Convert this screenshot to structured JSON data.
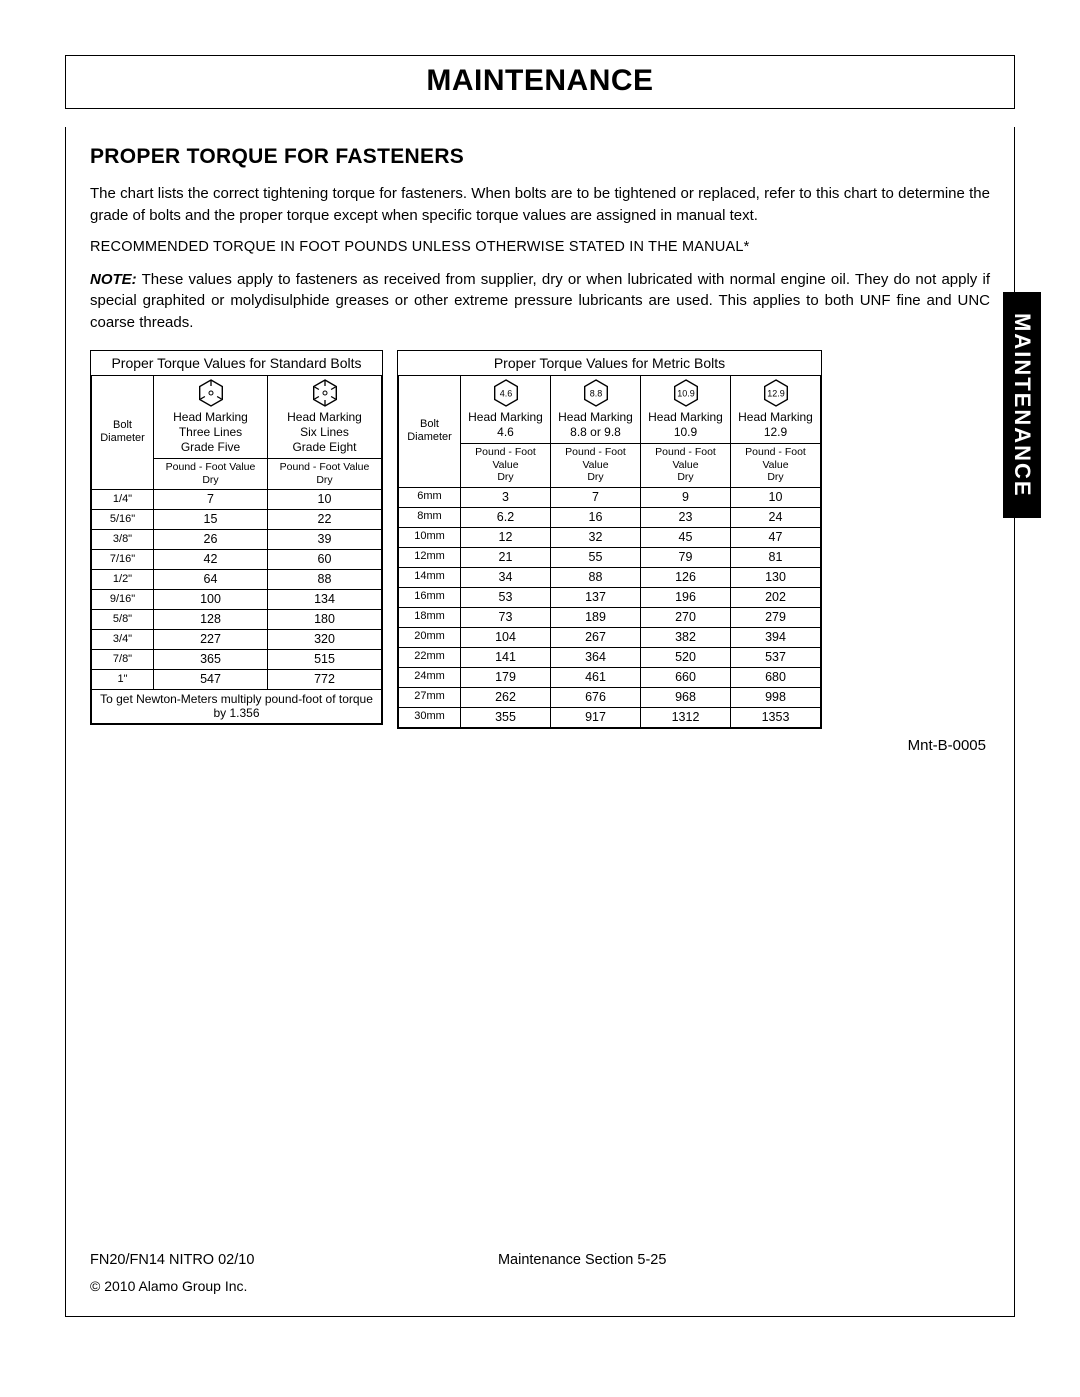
{
  "page": {
    "title": "MAINTENANCE",
    "side_tab": "MAINTENANCE",
    "section_heading": "PROPER TORQUE FOR FASTENERS",
    "intro": "The chart lists the correct tightening torque for fasteners. When bolts are to be tightened or replaced, refer to this chart to determine the grade of bolts and the proper torque except when specific torque values are assigned in manual text.",
    "caps_line": "RECOMMENDED TORQUE IN FOOT POUNDS UNLESS OTHERWISE STATED IN THE MANUAL*",
    "note_label": "NOTE:",
    "note_body": " These values apply to fasteners as received from supplier, dry or when lubricated with normal engine oil. They do not apply if special graphited or molydisulphide greases or other extreme pressure lubricants are used. This applies to both UNF fine and UNC coarse threads.",
    "figure_id": "Mnt-B-0005",
    "footer_left": "FN20/FN14 NITRO 02/10",
    "footer_center": "Maintenance Section 5-25",
    "copyright": "© 2010 Alamo Group Inc."
  },
  "standard_table": {
    "title": "Proper Torque Values for Standard Bolts",
    "dia_header": "Bolt Diameter",
    "columns": [
      {
        "marking": "Head Marking",
        "lines": "Three Lines",
        "grade": "Grade Five",
        "unit": "Pound - Foot Value",
        "state": "Dry",
        "hex_label": "",
        "tick_count": 3
      },
      {
        "marking": "Head Marking",
        "lines": "Six Lines",
        "grade": "Grade Eight",
        "unit": "Pound - Foot Value",
        "state": "Dry",
        "hex_label": "",
        "tick_count": 6
      }
    ],
    "rows": [
      {
        "dia": "1/4\"",
        "v": [
          "7",
          "10"
        ]
      },
      {
        "dia": "5/16\"",
        "v": [
          "15",
          "22"
        ]
      },
      {
        "dia": "3/8\"",
        "v": [
          "26",
          "39"
        ]
      },
      {
        "dia": "7/16\"",
        "v": [
          "42",
          "60"
        ]
      },
      {
        "dia": "1/2\"",
        "v": [
          "64",
          "88"
        ]
      },
      {
        "dia": "9/16\"",
        "v": [
          "100",
          "134"
        ]
      },
      {
        "dia": "5/8\"",
        "v": [
          "128",
          "180"
        ]
      },
      {
        "dia": "3/4\"",
        "v": [
          "227",
          "320"
        ]
      },
      {
        "dia": "7/8\"",
        "v": [
          "365",
          "515"
        ]
      },
      {
        "dia": "1\"",
        "v": [
          "547",
          "772"
        ]
      }
    ],
    "footnote": "To get Newton-Meters multiply pound-foot of torque by 1.356"
  },
  "metric_table": {
    "title": "Proper Torque Values for Metric Bolts",
    "dia_header": "Bolt Diameter",
    "columns": [
      {
        "hex_label": "4.6",
        "marking": "Head Marking",
        "grade": "4.6",
        "unit": "Pound - Foot Value",
        "state": "Dry"
      },
      {
        "hex_label": "8.8",
        "marking": "Head Marking",
        "grade": "8.8 or 9.8",
        "unit": "Pound - Foot Value",
        "state": "Dry"
      },
      {
        "hex_label": "10.9",
        "marking": "Head Marking",
        "grade": "10.9",
        "unit": "Pound - Foot Value",
        "state": "Dry"
      },
      {
        "hex_label": "12.9",
        "marking": "Head Marking",
        "grade": "12.9",
        "unit": "Pound - Foot Value",
        "state": "Dry"
      }
    ],
    "rows": [
      {
        "dia": "6mm",
        "v": [
          "3",
          "7",
          "9",
          "10"
        ]
      },
      {
        "dia": "8mm",
        "v": [
          "6.2",
          "16",
          "23",
          "24"
        ]
      },
      {
        "dia": "10mm",
        "v": [
          "12",
          "32",
          "45",
          "47"
        ]
      },
      {
        "dia": "12mm",
        "v": [
          "21",
          "55",
          "79",
          "81"
        ]
      },
      {
        "dia": "14mm",
        "v": [
          "34",
          "88",
          "126",
          "130"
        ]
      },
      {
        "dia": "16mm",
        "v": [
          "53",
          "137",
          "196",
          "202"
        ]
      },
      {
        "dia": "18mm",
        "v": [
          "73",
          "189",
          "270",
          "279"
        ]
      },
      {
        "dia": "20mm",
        "v": [
          "104",
          "267",
          "382",
          "394"
        ]
      },
      {
        "dia": "22mm",
        "v": [
          "141",
          "364",
          "520",
          "537"
        ]
      },
      {
        "dia": "24mm",
        "v": [
          "179",
          "461",
          "660",
          "680"
        ]
      },
      {
        "dia": "27mm",
        "v": [
          "262",
          "676",
          "968",
          "998"
        ]
      },
      {
        "dia": "30mm",
        "v": [
          "355",
          "917",
          "1312",
          "1353"
        ]
      }
    ]
  },
  "style": {
    "colors": {
      "text": "#000000",
      "background": "#ffffff",
      "border": "#000000",
      "tab_bg": "#000000",
      "tab_fg": "#ffffff"
    },
    "fonts": {
      "title_pt": 30,
      "heading_pt": 21,
      "body_pt": 15,
      "table_pt": 12.5,
      "small_pt": 11
    }
  }
}
